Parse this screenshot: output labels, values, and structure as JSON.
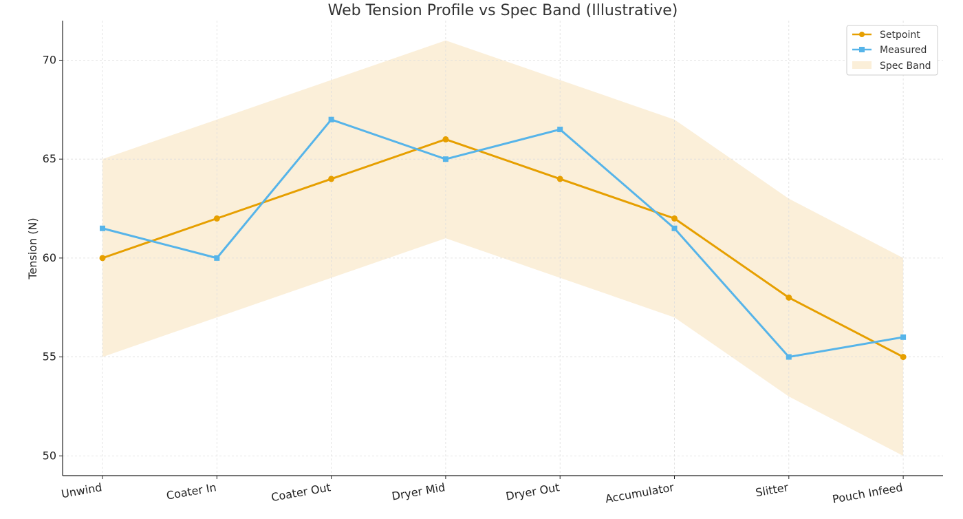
{
  "chart_data": {
    "type": "line",
    "title": "Web Tension Profile vs Spec Band (Illustrative)",
    "xlabel": "",
    "ylabel": "Tension (N)",
    "categories": [
      "Unwind",
      "Coater In",
      "Coater Out",
      "Dryer Mid",
      "Dryer Out",
      "Accumulator",
      "Slitter",
      "Pouch Infeed"
    ],
    "series": [
      {
        "name": "Setpoint",
        "values": [
          60,
          62,
          64,
          66,
          64,
          62,
          58,
          55
        ],
        "color": "#E69F00",
        "marker": "circle"
      },
      {
        "name": "Measured",
        "values": [
          61.5,
          60,
          67,
          65,
          66.5,
          61.5,
          55,
          56
        ],
        "color": "#56B4E9",
        "marker": "square"
      }
    ],
    "band": {
      "name": "Spec Band",
      "lower": [
        55,
        57,
        59,
        61,
        59,
        57,
        53,
        50
      ],
      "upper": [
        65,
        67,
        69,
        71,
        69,
        67,
        63,
        60
      ],
      "color": "#FBEFD9"
    },
    "ylim": [
      49,
      72
    ],
    "yticks": [
      50,
      55,
      60,
      65,
      70
    ],
    "grid": true,
    "legend": "top-right"
  }
}
